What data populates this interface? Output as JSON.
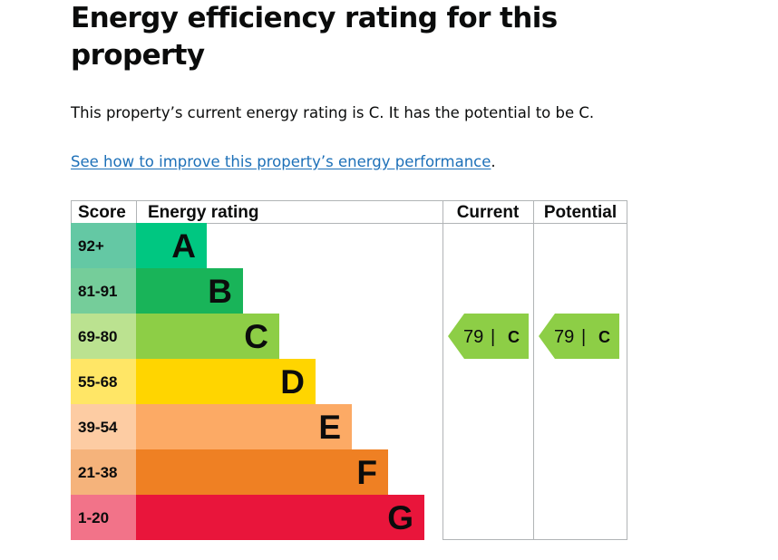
{
  "page": {
    "title": "Energy efficiency rating for this property",
    "summary": "This property’s current energy rating is C. It has the potential to be C.",
    "improve_link": "See how to improve this property’s energy performance",
    "improve_suffix": "."
  },
  "chart_data": {
    "type": "table",
    "title": "Energy efficiency rating for this property",
    "columns": [
      "Score",
      "Energy rating",
      "Current",
      "Potential"
    ],
    "bands": [
      {
        "score": "92+",
        "letter": "A",
        "color": "#008054",
        "band_color": "#00c781",
        "score_bg": "#64c8a4"
      },
      {
        "score": "81-91",
        "letter": "B",
        "color": "#19b459",
        "band_color": "#19b459",
        "score_bg": "#75cd9a"
      },
      {
        "score": "69-80",
        "letter": "C",
        "color": "#8dce46",
        "band_color": "#8dce46",
        "score_bg": "#bbe290"
      },
      {
        "score": "55-68",
        "letter": "D",
        "color": "#ffd500",
        "band_color": "#ffd500",
        "score_bg": "#ffe666"
      },
      {
        "score": "39-54",
        "letter": "E",
        "color": "#fcaa65",
        "band_color": "#fcaa65",
        "score_bg": "#fdcca3"
      },
      {
        "score": "21-38",
        "letter": "F",
        "color": "#ef8023",
        "band_color": "#ef8023",
        "score_bg": "#f5b37b"
      },
      {
        "score": "1-20",
        "letter": "G",
        "color": "#e9153b",
        "band_color": "#e9153b",
        "score_bg": "#f27389"
      }
    ],
    "current": {
      "value": 79,
      "letter": "C",
      "separator": "|",
      "color": "#8dce46"
    },
    "potential": {
      "value": 79,
      "letter": "C",
      "separator": "|",
      "color": "#8dce46"
    }
  }
}
